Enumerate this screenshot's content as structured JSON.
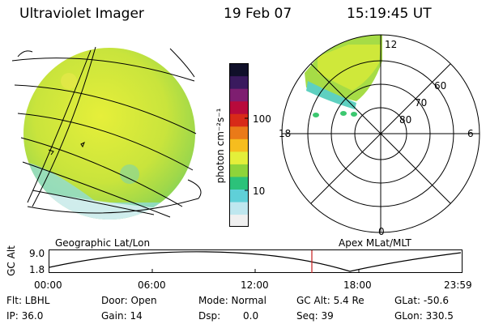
{
  "header": {
    "instrument": "Ultraviolet Imager",
    "date": "19 Feb 07",
    "time": "15:19:45 UT"
  },
  "colorbar": {
    "unit_label": "photon cm⁻²s⁻¹",
    "ticks": [
      "100",
      "10"
    ],
    "colors": [
      "#f0f0f0",
      "#bfe7ef",
      "#5fd0d8",
      "#2cc27a",
      "#8fd43a",
      "#e4ef3a",
      "#f6bd1e",
      "#ea7a18",
      "#d82a18",
      "#b80a3c",
      "#7e1e70",
      "#3a1a5e",
      "#10102a"
    ]
  },
  "polar_plot": {
    "mlt_labels": [
      "12",
      "18",
      "6",
      "0"
    ],
    "lat_labels": [
      "60",
      "70",
      "80"
    ]
  },
  "altitude_plot": {
    "left_title": "Geographic Lat/Lon",
    "right_title": "Apex MLat/MLT",
    "y_axis_label": "GC Alt",
    "y_ticks": [
      "9.0",
      "1.8"
    ],
    "x_ticks": [
      "00:00",
      "06:00",
      "12:00",
      "18:00",
      "23:59"
    ],
    "marker_color": "#c81e1e"
  },
  "status": {
    "flt": "Flt: LBHL",
    "ip": "IP: 36.0",
    "door": "Door: Open",
    "gain": "Gain: 14",
    "mode": "Mode: Normal",
    "dsp_label": "Dsp:",
    "dsp_value": "0.0",
    "gc_alt": "GC Alt: 5.4 Re",
    "seq": "Seq: 39",
    "glat": "GLat: -50.6",
    "glon": "GLon: 330.5"
  }
}
